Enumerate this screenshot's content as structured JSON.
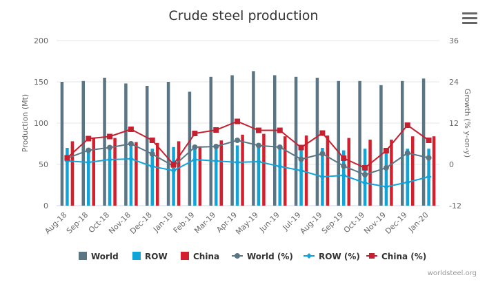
{
  "header": {
    "title": "Crude steel production",
    "menu_icon": "hamburger-menu-icon"
  },
  "credit": "worldsteel.org",
  "colors": {
    "world": "#5a7684",
    "row": "#10a4d8",
    "china": "#d41f2d",
    "world_pct": "#5a7684",
    "row_pct": "#10a4d8",
    "china_pct": "#c4202f",
    "grid": "#e6e6e6",
    "text": "#666666"
  },
  "chart_data": {
    "type": "bar",
    "title": "Crude steel production",
    "categories": [
      "Aug-18",
      "Sep-18",
      "Oct-18",
      "Nov-18",
      "Dec-18",
      "Jan-19",
      "Feb-19",
      "Mar-19",
      "Apr-19",
      "May-19",
      "Jun-19",
      "Jul-19",
      "Aug-19",
      "Sep-19",
      "Oct-19",
      "Nov-19",
      "Dec-19",
      "Jan-20"
    ],
    "y_left": {
      "label": "Production (Mt)",
      "range": [
        0,
        200
      ],
      "ticks": [
        0,
        50,
        100,
        150,
        200
      ]
    },
    "y_right": {
      "label": "Growth (% y-on-y)",
      "range": [
        -12,
        36
      ],
      "ticks": [
        -12,
        0,
        12,
        24,
        36
      ]
    },
    "series": [
      {
        "name": "World",
        "type": "bar",
        "axis": "left",
        "values": [
          150,
          151,
          155,
          148,
          145,
          150,
          138,
          156,
          158,
          163,
          158,
          156,
          155,
          151,
          151,
          146,
          151,
          154
        ]
      },
      {
        "name": "ROW",
        "type": "bar",
        "axis": "left",
        "values": [
          70,
          68,
          72,
          72,
          69,
          71,
          71,
          70,
          73,
          74,
          71,
          72,
          70,
          67,
          69,
          67,
          69,
          69
        ]
      },
      {
        "name": "China",
        "type": "bar",
        "axis": "left",
        "values": [
          78,
          82,
          82,
          77,
          76,
          78,
          72,
          79,
          86,
          87,
          84,
          85,
          85,
          82,
          80,
          80,
          84,
          84
        ]
      },
      {
        "name": "World (%)",
        "type": "line",
        "axis": "right",
        "values": [
          1.8,
          4.1,
          4.9,
          6.0,
          3.0,
          -0.5,
          5.0,
          5.2,
          7.0,
          5.5,
          5.0,
          1.5,
          3.1,
          -0.5,
          -3.0,
          -1.0,
          3.3,
          1.9
        ]
      },
      {
        "name": "ROW (%)",
        "type": "line",
        "axis": "right",
        "values": [
          1.0,
          0.6,
          1.4,
          1.6,
          -0.6,
          -1.8,
          1.4,
          1.0,
          0.6,
          0.8,
          -0.6,
          -1.8,
          -3.6,
          -3.2,
          -5.4,
          -6.5,
          -5.2,
          -3.6
        ]
      },
      {
        "name": "China (%)",
        "type": "line",
        "axis": "right",
        "values": [
          1.9,
          7.5,
          8.1,
          10.2,
          7.0,
          0.0,
          9.0,
          10.0,
          12.5,
          9.9,
          9.9,
          4.9,
          9.1,
          1.8,
          -1.0,
          4.0,
          11.4,
          7.0
        ]
      }
    ],
    "legend": "bottom",
    "grid": true
  }
}
